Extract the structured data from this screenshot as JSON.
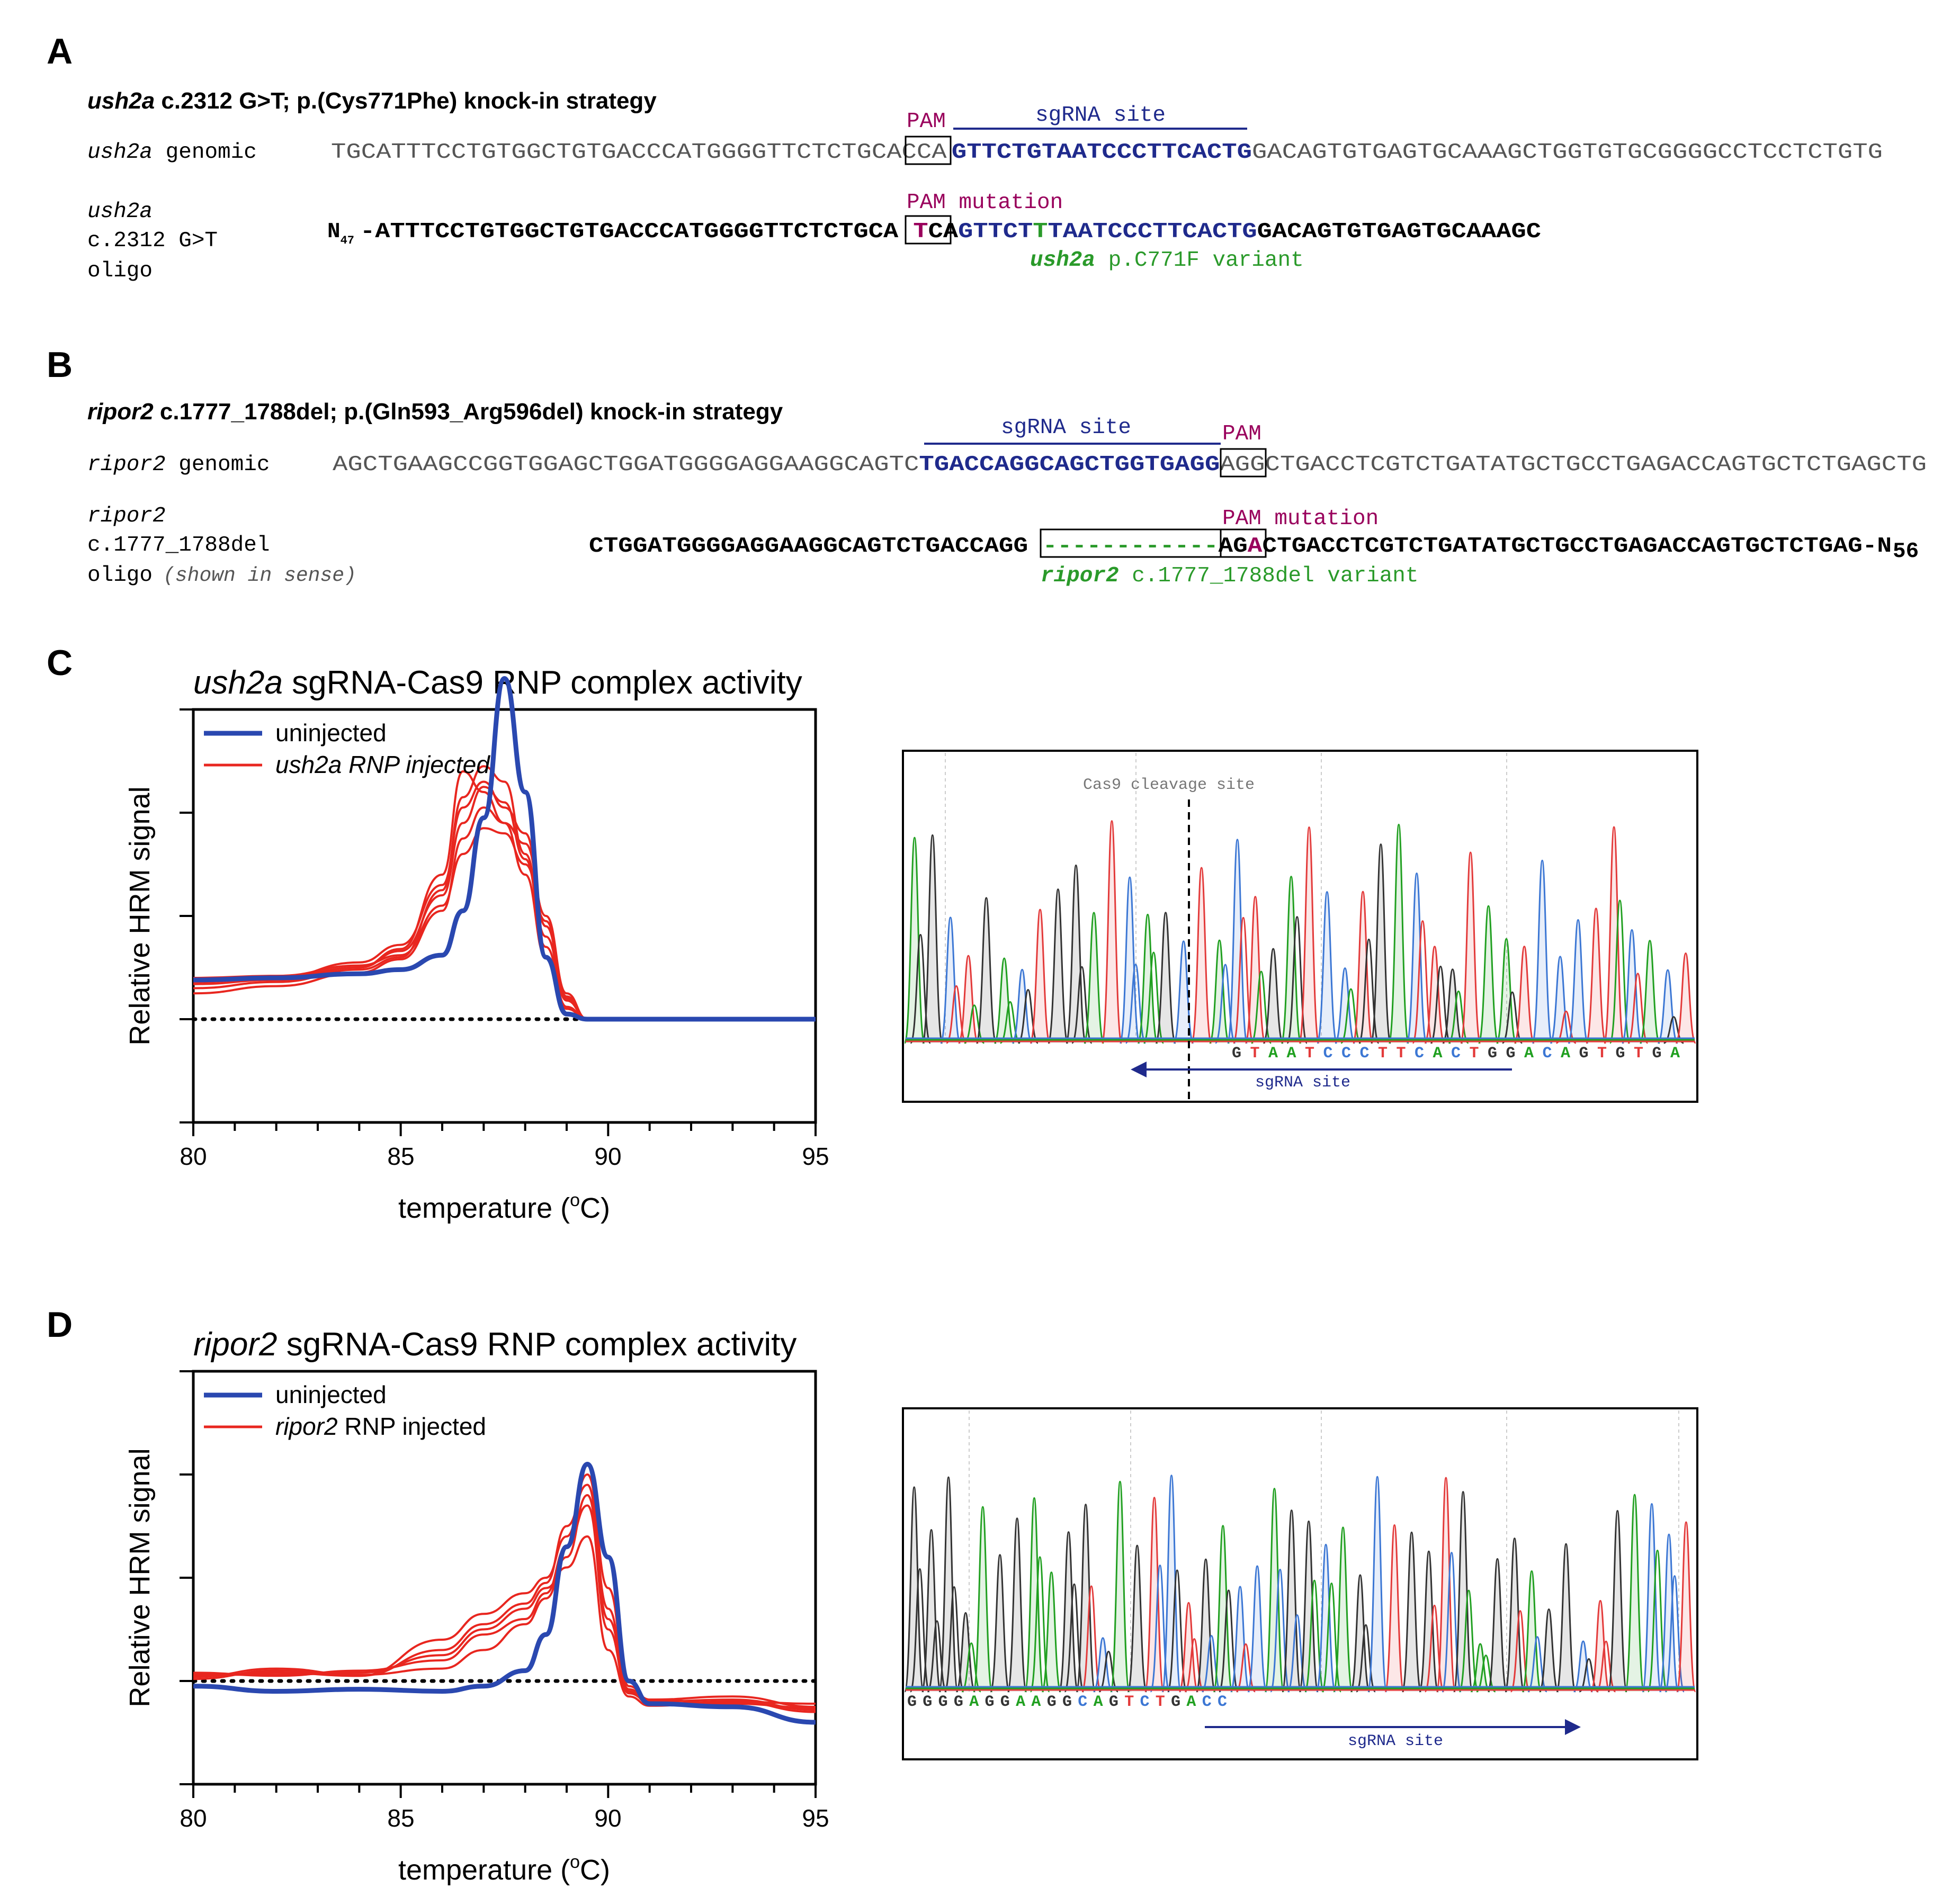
{
  "colors": {
    "maroon": "#99005c",
    "navy": "#1f2a8c",
    "green": "#2a9a2a",
    "gray": "#555555",
    "red": "#e8261f",
    "blue": "#2a48b0",
    "trace_green": "#21a021",
    "trace_blue": "#3c77d4",
    "trace_red": "#e33a3a",
    "trace_black": "#333333"
  },
  "panelA": {
    "letter": "A",
    "title_gene": "ush2a",
    "title_rest": " c.2312 G>T; p.(Cys771Phe) knock-in strategy",
    "pam_label": "PAM",
    "sgrna_label": "sgRNA site",
    "genomic_label_gene": "ush2a",
    "genomic_label_rest": " genomic",
    "genomic_seq_pre": "TGCATTTCCTGTGGCTGTGACCCATGGGGTTCTCTGCAC",
    "genomic_seq_pam": "CA",
    "genomic_seq_site": "GTTCTGTAATCCCTTCACTG",
    "genomic_seq_post": "GACAGTGTGAGTGCAAAGCTGGTGTGCGGGGCCTCCTCTGTG",
    "oligo_label_line1": "ush2a",
    "oligo_label_line2": "c.2312 G>T",
    "oligo_label_line3": "oligo",
    "pam_mutation_label": "PAM mutation",
    "oligo_n": "N",
    "oligo_n_sub": "47",
    "oligo_seq_pre": "-ATTTCCTGTGGCTGTGACCCATGGGGTTCTCTGCA ",
    "oligo_seq_mut": "T",
    "oligo_seq_pam": "CA",
    "oligo_seq_site1": "GTTCT",
    "oligo_seq_variant": "T",
    "oligo_seq_site2": "TAATCCCTTCACTG",
    "oligo_seq_post": "GACAGTGTGAGTGCAAAGC",
    "variant_gene": "ush2a",
    "variant_rest": " p.C771F variant"
  },
  "panelB": {
    "letter": "B",
    "title_gene": "ripor2",
    "title_rest": " c.1777_1788del; p.(Gln593_Arg596del) knock-in strategy",
    "sgrna_label": "sgRNA site",
    "pam_label": "PAM",
    "genomic_label_gene": "ripor2",
    "genomic_label_rest": " genomic",
    "genomic_seq_pre": "AGCTGAAGCCGGTGGAGCTGGATGGGGAGGAAGGCAGTC",
    "genomic_seq_site": "TGACCAGGCAGCTGGTGAGG",
    "genomic_seq_pam": "AGG",
    "genomic_seq_post": "CTGACCTCGTCTGATATGCTGCCTGAGACCAGTGCTCTGAGCTG",
    "oligo_label_line1": "ripor2",
    "oligo_label_line2": "c.1777_1788del",
    "oligo_label_line3": "oligo",
    "oligo_label_note": "(shown in sense)",
    "pam_mutation_label": "PAM mutation",
    "oligo_seq_pre": "CTGGATGGGGAGGAAGGCAGTCTGACCAGG ",
    "oligo_seq_del": "------------",
    "oligo_seq_pam1": "AG",
    "oligo_seq_mut": "A",
    "oligo_seq_post": "CTGACCTCGTCTGATATGCTGCCTGAGACCAGTGCTCTGAG-N",
    "oligo_n_sub": "56",
    "variant_gene": "ripor2",
    "variant_rest": " c.1777_1788del variant"
  },
  "panelC": {
    "letter": "C",
    "title_gene": "ush2a",
    "title_rest": " sgRNA-Cas9 RNP complex activity",
    "legend_uninjected": "uninjected",
    "legend_injected": "ush2a RNP injected",
    "ylabel": "Relative HRM signal",
    "xlabel_pre": "temperature (",
    "xlabel_sup": "o",
    "xlabel_post": "C)",
    "xticks": [
      "80",
      "85",
      "90",
      "95"
    ],
    "cleavage_label": "Cas9 cleavage site",
    "bases": [
      "G",
      "T",
      "A",
      "A",
      "T",
      "C",
      "C",
      "C",
      "T",
      "T",
      "C",
      "A",
      "C",
      "T",
      "G",
      "G",
      "A",
      "C",
      "A",
      "G",
      "T",
      "G",
      "T",
      "G",
      "A"
    ],
    "sgrna_label": "sgRNA site"
  },
  "panelD": {
    "letter": "D",
    "title_gene": "ripor2",
    "title_rest": " sgRNA-Cas9 RNP complex activity",
    "legend_uninjected": "uninjected",
    "legend_injected_gene": "ripor2",
    "legend_injected_rest": " RNP injected",
    "ylabel": "Relative HRM signal",
    "xlabel_pre": "temperature (",
    "xlabel_sup": "o",
    "xlabel_post": "C)",
    "xticks": [
      "80",
      "85",
      "90",
      "95"
    ],
    "bases": [
      "G",
      "G",
      "G",
      "G",
      "A",
      "G",
      "G",
      "A",
      "A",
      "G",
      "G",
      "C",
      "A",
      "G",
      "T",
      "C",
      "T",
      "G",
      "A",
      "C",
      "C"
    ],
    "sgrna_label": "sgRNA site"
  },
  "chart_data": [
    {
      "type": "line",
      "title": "ush2a sgRNA-Cas9 RNP complex activity",
      "xlabel": "temperature (oC)",
      "ylabel": "Relative HRM signal",
      "xlim": [
        80,
        95
      ],
      "ylim": [
        -1,
        3
      ],
      "x": [
        80,
        82,
        84,
        85,
        86,
        86.5,
        87,
        87.5,
        88,
        88.5,
        89,
        89.5,
        90,
        95
      ],
      "series": [
        {
          "name": "uninjected",
          "values": [
            0.38,
            0.4,
            0.44,
            0.48,
            0.62,
            1.05,
            1.95,
            3.3,
            2.2,
            0.6,
            0.05,
            0.0,
            0.0,
            0.0
          ]
        },
        {
          "name": "ush2a RNP injected 1",
          "values": [
            0.38,
            0.4,
            0.5,
            0.68,
            1.4,
            2.4,
            2.2,
            1.9,
            1.4,
            0.6,
            0.1,
            0.0,
            0.0,
            0.0
          ]
        },
        {
          "name": "ush2a RNP injected 2",
          "values": [
            0.3,
            0.36,
            0.48,
            0.6,
            1.25,
            2.15,
            2.45,
            2.3,
            1.6,
            0.8,
            0.18,
            0.0,
            0.0,
            0.0
          ]
        },
        {
          "name": "ush2a RNP injected 3",
          "values": [
            0.36,
            0.4,
            0.55,
            0.72,
            1.3,
            2.05,
            2.3,
            2.05,
            1.8,
            0.9,
            0.2,
            0.0,
            0.0,
            0.0
          ]
        },
        {
          "name": "ush2a RNP injected 4",
          "values": [
            0.25,
            0.32,
            0.45,
            0.58,
            1.05,
            1.75,
            2.05,
            1.9,
            1.7,
            1.0,
            0.25,
            0.0,
            0.0,
            0.0
          ]
        },
        {
          "name": "ush2a RNP injected 5",
          "values": [
            0.4,
            0.42,
            0.52,
            0.62,
            1.1,
            1.6,
            1.85,
            1.8,
            1.5,
            0.95,
            0.22,
            0.0,
            0.0,
            0.0
          ]
        },
        {
          "name": "ush2a RNP injected 6",
          "values": [
            0.34,
            0.38,
            0.5,
            0.66,
            1.2,
            1.9,
            2.25,
            2.1,
            1.55,
            0.7,
            0.12,
            0.0,
            0.0,
            0.0
          ]
        }
      ],
      "reference_line": 0
    },
    {
      "type": "line",
      "title": "ripor2 sgRNA-Cas9 RNP complex activity",
      "xlabel": "temperature (oC)",
      "ylabel": "Relative HRM signal",
      "xlim": [
        80,
        95
      ],
      "ylim": [
        -1,
        3
      ],
      "x": [
        80,
        82,
        84,
        86,
        87,
        88,
        88.5,
        89,
        89.5,
        90,
        90.5,
        91,
        93,
        95
      ],
      "series": [
        {
          "name": "uninjected",
          "values": [
            -0.05,
            -0.1,
            -0.08,
            -0.1,
            -0.05,
            0.1,
            0.45,
            1.3,
            2.1,
            1.2,
            0.0,
            -0.22,
            -0.25,
            -0.4
          ]
        },
        {
          "name": "ripor2 RNP injected 1",
          "values": [
            0.05,
            0.08,
            0.05,
            0.4,
            0.65,
            0.85,
            1.0,
            1.4,
            2.0,
            0.9,
            -0.05,
            -0.18,
            -0.15,
            -0.25
          ]
        },
        {
          "name": "ripor2 RNP injected 2",
          "values": [
            0.02,
            0.1,
            0.05,
            0.3,
            0.55,
            0.75,
            0.95,
            1.5,
            1.9,
            0.7,
            -0.1,
            -0.22,
            -0.2,
            -0.22
          ]
        },
        {
          "name": "ripor2 RNP injected 3",
          "values": [
            0.08,
            0.05,
            0.1,
            0.2,
            0.45,
            0.6,
            0.85,
            1.3,
            1.7,
            0.5,
            -0.12,
            -0.2,
            -0.18,
            -0.28
          ]
        },
        {
          "name": "ripor2 RNP injected 4",
          "values": [
            0.04,
            0.12,
            0.06,
            0.12,
            0.3,
            0.55,
            0.8,
            1.2,
            1.8,
            0.6,
            -0.08,
            -0.18,
            -0.22,
            -0.26
          ]
        },
        {
          "name": "ripor2 RNP injected 5",
          "values": [
            0.06,
            0.06,
            0.08,
            0.25,
            0.5,
            0.7,
            0.9,
            1.1,
            1.4,
            0.3,
            -0.15,
            -0.24,
            -0.2,
            -0.3
          ]
        }
      ],
      "reference_line": 0
    }
  ]
}
